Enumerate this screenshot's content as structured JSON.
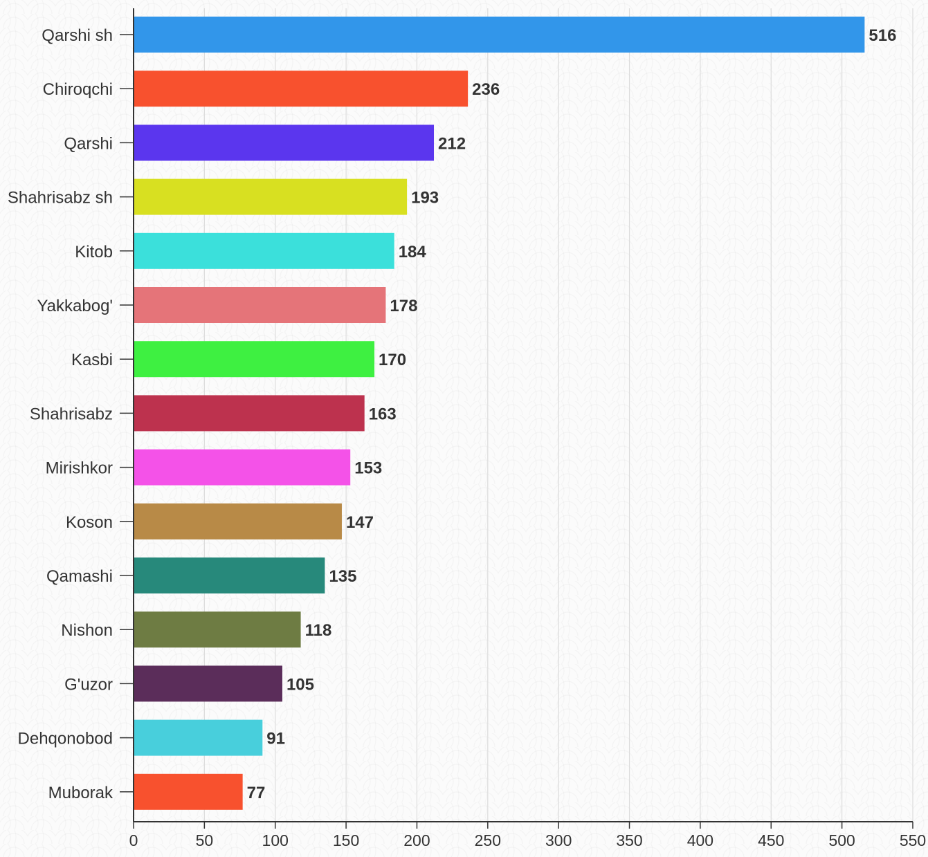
{
  "chart_data": {
    "type": "bar",
    "orientation": "horizontal",
    "categories": [
      "Qarshi sh",
      "Chiroqchi",
      "Qarshi",
      "Shahrisabz sh",
      "Kitob",
      "Yakkabog'",
      "Kasbi",
      "Shahrisabz",
      "Mirishkor",
      "Koson",
      "Qamashi",
      "Nishon",
      "G'uzor",
      "Dehqonobod",
      "Muborak"
    ],
    "values": [
      516,
      236,
      212,
      193,
      184,
      178,
      170,
      163,
      153,
      147,
      135,
      118,
      105,
      91,
      77
    ],
    "colors": [
      "#3296ea",
      "#f8512e",
      "#5b36ee",
      "#d8e021",
      "#3be0db",
      "#e57479",
      "#3ef041",
      "#bd324e",
      "#f452e8",
      "#b88a47",
      "#27897b",
      "#6e7c43",
      "#5b2d5a",
      "#48cfdc",
      "#f8512e"
    ],
    "xlim": [
      0,
      550
    ],
    "xticks": [
      "0",
      "50",
      "100",
      "150",
      "200",
      "250",
      "300",
      "350",
      "400",
      "450",
      "500",
      "550"
    ],
    "grid": true,
    "title": "",
    "xlabel": "",
    "ylabel": ""
  }
}
